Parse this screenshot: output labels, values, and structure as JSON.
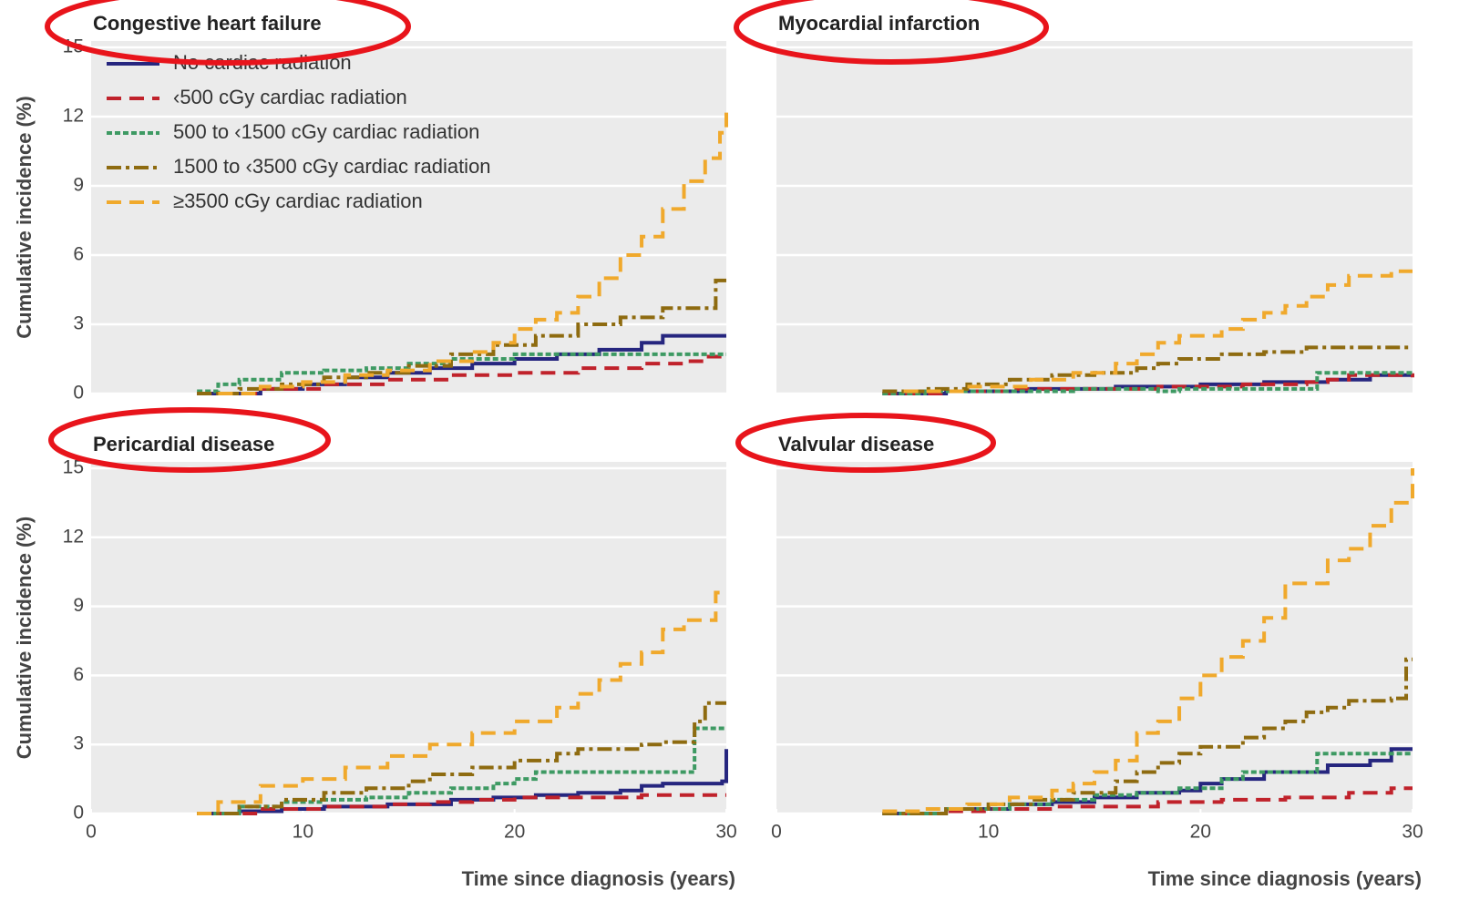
{
  "chart_data": [
    {
      "type": "line",
      "step": true,
      "title": "Congestive heart failure",
      "y_label": "Cumulative incidence (%)",
      "xlim": [
        0,
        30
      ],
      "ylim": [
        0,
        15
      ],
      "yticks": [
        0,
        3,
        6,
        9,
        12,
        15
      ],
      "ytick_labels": true,
      "grid": true,
      "legend": "upper left",
      "series": [
        {
          "name": "No cardiac radiation",
          "color": "#26267f",
          "style": "solid",
          "x": [
            5,
            8,
            10,
            12,
            14,
            16,
            18,
            20,
            22,
            24,
            26,
            27,
            30
          ],
          "values": [
            0,
            0.2,
            0.4,
            0.7,
            0.9,
            1.1,
            1.3,
            1.5,
            1.7,
            1.9,
            2.2,
            2.5,
            2.5
          ]
        },
        {
          "name": "‹500 cGy cardiac radiation",
          "color": "#c0222b",
          "style": "dashed",
          "x": [
            5,
            8,
            11,
            14,
            17,
            20,
            23,
            26,
            28,
            29,
            30
          ],
          "values": [
            0,
            0.2,
            0.4,
            0.6,
            0.8,
            0.9,
            1.1,
            1.3,
            1.4,
            1.6,
            1.6
          ]
        },
        {
          "name": "500 to ‹1500 cGy cardiac radiation",
          "color": "#3e9a63",
          "style": "dotted",
          "x": [
            5,
            6,
            7,
            9,
            11,
            13,
            15,
            17,
            20,
            30
          ],
          "values": [
            0.1,
            0.4,
            0.6,
            0.9,
            1.0,
            1.1,
            1.3,
            1.5,
            1.7,
            1.7
          ]
        },
        {
          "name": "1500 to ‹3500 cGy cardiac radiation",
          "color": "#8e6b10",
          "style": "dashdot",
          "x": [
            5,
            7,
            9,
            11,
            13,
            15,
            17,
            19,
            21,
            23,
            25,
            27,
            29.5,
            30
          ],
          "values": [
            0,
            0.2,
            0.4,
            0.7,
            0.9,
            1.2,
            1.7,
            2.1,
            2.5,
            3.0,
            3.3,
            3.7,
            4.9,
            4.9
          ]
        },
        {
          "name": "≥3500 cGy cardiac radiation",
          "color": "#f0a92c",
          "style": "dashed",
          "x": [
            6,
            8,
            10,
            12,
            14,
            16,
            18,
            19,
            20,
            21,
            22,
            23,
            24,
            25,
            26,
            27,
            28,
            29,
            29.7,
            30
          ],
          "values": [
            0,
            0.3,
            0.5,
            0.8,
            1.0,
            1.4,
            1.8,
            2.2,
            2.8,
            3.2,
            3.5,
            4.2,
            5.0,
            6.0,
            6.8,
            8.0,
            9.2,
            10.2,
            11.3,
            12.3
          ]
        }
      ]
    },
    {
      "type": "line",
      "step": true,
      "title": "Myocardial infarction",
      "xlim": [
        0,
        30
      ],
      "ylim": [
        0,
        15
      ],
      "yticks": [
        0,
        3,
        6,
        9,
        12,
        15
      ],
      "ytick_labels": false,
      "grid": true,
      "series": [
        {
          "color": "#26267f",
          "style": "solid",
          "x": [
            5,
            8,
            12,
            16,
            20,
            23,
            26,
            28,
            30
          ],
          "values": [
            0,
            0.1,
            0.2,
            0.3,
            0.4,
            0.5,
            0.6,
            0.8,
            0.8
          ]
        },
        {
          "color": "#c0222b",
          "style": "dashed",
          "x": [
            5,
            8,
            11,
            15,
            18,
            22,
            25,
            26,
            27,
            30
          ],
          "values": [
            0,
            0.1,
            0.2,
            0.2,
            0.3,
            0.4,
            0.5,
            0.6,
            0.8,
            0.7
          ]
        },
        {
          "color": "#3e9a63",
          "style": "dotted",
          "x": [
            5,
            7,
            10,
            14,
            18,
            19,
            24,
            25.5,
            30
          ],
          "values": [
            0,
            0.1,
            0.1,
            0.2,
            0.1,
            0.2,
            0.2,
            0.9,
            0.9
          ]
        },
        {
          "color": "#8e6b10",
          "style": "dashdot",
          "x": [
            5,
            7,
            9,
            11,
            13,
            15,
            17,
            18,
            19,
            21,
            23,
            25,
            30
          ],
          "values": [
            0.1,
            0.2,
            0.4,
            0.6,
            0.8,
            0.9,
            1.1,
            1.3,
            1.5,
            1.7,
            1.8,
            2.0,
            2.0
          ]
        },
        {
          "color": "#f0a92c",
          "style": "dashed",
          "x": [
            6,
            9,
            12,
            14,
            16,
            17,
            18,
            19,
            21,
            22,
            23,
            24,
            25,
            26,
            27,
            29,
            30
          ],
          "values": [
            0.1,
            0.3,
            0.6,
            0.9,
            1.3,
            1.7,
            2.2,
            2.5,
            2.8,
            3.2,
            3.5,
            3.8,
            4.2,
            4.7,
            5.1,
            5.3,
            5.3
          ]
        }
      ]
    },
    {
      "type": "line",
      "step": true,
      "title": "Pericardial disease",
      "y_label": "Cumulative incidence (%)",
      "x_label": "Time since diagnosis (years)",
      "xlim": [
        0,
        30
      ],
      "xticks": [
        0,
        10,
        20,
        30
      ],
      "ylim": [
        0,
        15
      ],
      "yticks": [
        0,
        3,
        6,
        9,
        12,
        15
      ],
      "ytick_labels": true,
      "grid": true,
      "series": [
        {
          "color": "#26267f",
          "style": "solid",
          "x": [
            5,
            7,
            9,
            11,
            14,
            17,
            19,
            21,
            23,
            25,
            26,
            27,
            29.8,
            30
          ],
          "values": [
            0,
            0.1,
            0.2,
            0.3,
            0.4,
            0.6,
            0.7,
            0.8,
            0.9,
            1.0,
            1.2,
            1.3,
            1.4,
            2.8
          ]
        },
        {
          "color": "#c0222b",
          "style": "dashed",
          "x": [
            5,
            8,
            11,
            14,
            16,
            18,
            20,
            23,
            26,
            30
          ],
          "values": [
            0,
            0.2,
            0.3,
            0.4,
            0.5,
            0.6,
            0.7,
            0.7,
            0.8,
            0.8
          ]
        },
        {
          "color": "#3e9a63",
          "style": "dotted",
          "x": [
            5,
            7,
            9,
            11,
            13,
            15,
            17,
            19,
            20,
            21,
            28,
            28.5,
            30
          ],
          "values": [
            0,
            0.3,
            0.5,
            0.6,
            0.7,
            0.9,
            1.1,
            1.3,
            1.5,
            1.8,
            1.8,
            3.7,
            3.7
          ]
        },
        {
          "color": "#8e6b10",
          "style": "dashdot",
          "x": [
            5,
            7,
            9,
            11,
            13,
            15,
            16,
            18,
            20,
            22,
            23,
            26,
            27,
            28.5,
            29,
            30
          ],
          "values": [
            0,
            0.3,
            0.6,
            0.9,
            1.1,
            1.4,
            1.7,
            2.0,
            2.3,
            2.6,
            2.8,
            3.0,
            3.1,
            4.0,
            4.8,
            4.8
          ]
        },
        {
          "color": "#f0a92c",
          "style": "dashed",
          "x": [
            5,
            6,
            8,
            10,
            12,
            14,
            16,
            18,
            20,
            22,
            23,
            24,
            25,
            26,
            27,
            28,
            29.5,
            30
          ],
          "values": [
            0,
            0.5,
            1.2,
            1.5,
            2.0,
            2.5,
            3.0,
            3.5,
            4.0,
            4.6,
            5.2,
            5.8,
            6.5,
            7.0,
            8.0,
            8.4,
            9.6,
            9.6
          ]
        }
      ]
    },
    {
      "type": "line",
      "step": true,
      "title": "Valvular disease",
      "x_label": "Time since diagnosis (years)",
      "xlim": [
        0,
        30
      ],
      "xticks": [
        0,
        10,
        20,
        30
      ],
      "ylim": [
        0,
        15
      ],
      "yticks": [
        0,
        3,
        6,
        9,
        12,
        15
      ],
      "ytick_labels": false,
      "grid": true,
      "series": [
        {
          "color": "#26267f",
          "style": "solid",
          "x": [
            5,
            8,
            11,
            13,
            15,
            17,
            19,
            20,
            21,
            23,
            26,
            28,
            29,
            30
          ],
          "values": [
            0,
            0.2,
            0.4,
            0.5,
            0.7,
            0.9,
            1.0,
            1.3,
            1.5,
            1.8,
            2.1,
            2.3,
            2.8,
            2.8
          ]
        },
        {
          "color": "#c0222b",
          "style": "dashed",
          "x": [
            5,
            8,
            10,
            13,
            16,
            18,
            21,
            24,
            27,
            29,
            30
          ],
          "values": [
            0,
            0.1,
            0.2,
            0.3,
            0.3,
            0.5,
            0.6,
            0.7,
            0.9,
            1.1,
            1.1
          ]
        },
        {
          "color": "#3e9a63",
          "style": "dotted",
          "x": [
            5,
            8,
            11,
            13,
            15,
            17,
            19,
            21,
            22,
            25,
            25.5,
            30
          ],
          "values": [
            0,
            0.2,
            0.4,
            0.6,
            0.8,
            0.9,
            1.1,
            1.5,
            1.8,
            1.8,
            2.6,
            2.6
          ]
        },
        {
          "color": "#8e6b10",
          "style": "dashdot",
          "x": [
            5,
            8,
            10,
            12,
            14,
            16,
            17,
            18,
            19,
            20,
            22,
            23,
            24,
            25,
            26,
            27,
            29,
            29.7,
            30
          ],
          "values": [
            0,
            0.2,
            0.4,
            0.6,
            0.9,
            1.4,
            1.8,
            2.2,
            2.6,
            2.9,
            3.3,
            3.7,
            4.0,
            4.4,
            4.6,
            4.9,
            5.0,
            6.7,
            6.7
          ]
        },
        {
          "color": "#f0a92c",
          "style": "dashed",
          "x": [
            5,
            7,
            9,
            11,
            13,
            14,
            15,
            16,
            17,
            18,
            19,
            20,
            21,
            22,
            23,
            24,
            25,
            26,
            27,
            28,
            29,
            30
          ],
          "values": [
            0.1,
            0.2,
            0.4,
            0.7,
            1.0,
            1.3,
            1.8,
            2.3,
            3.5,
            4.0,
            5.0,
            6.0,
            6.8,
            7.5,
            8.5,
            10.0,
            10.0,
            11.0,
            11.5,
            12.5,
            13.5,
            15.0
          ]
        }
      ]
    }
  ]
}
